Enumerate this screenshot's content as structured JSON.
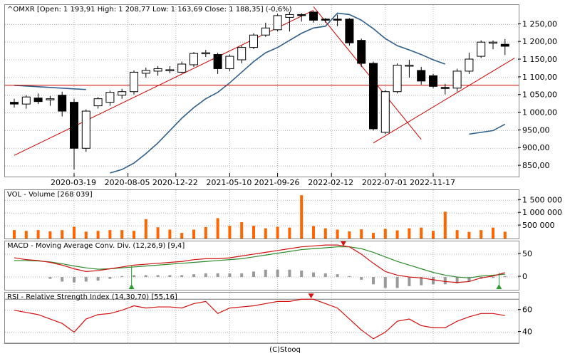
{
  "footer": "(C)Stooq",
  "panels": {
    "price": {
      "title": "^OMXR [Open: 1 193,91  High: 1 208,77  Low: 1 163,69  Close: 1 188,35] (-0,6%)"
    },
    "volume": {
      "title": "VOL - Volume [268 039]"
    },
    "macd": {
      "title": "MACD - Moving Average Conv. Div. (12,26,9) [9,4]"
    },
    "rsi": {
      "title": "RSI - Relative Strength Index (14,30,70) [55,16]"
    }
  },
  "colors": {
    "up": "#ffffff",
    "down": "#000000",
    "sma": "#2f5f8a",
    "trend": "#cc0000",
    "volume": "#ff6600",
    "macd": "#d11010",
    "signal": "#2e8b2e",
    "hist": "#9a9a9a",
    "rsi": "#d11010",
    "grid": "#b0b0b0",
    "buy": "#2e9c2e",
    "sell": "#dd1111"
  },
  "chart_data": [
    {
      "type": "candlestick",
      "ylim": [
        820,
        1305
      ],
      "yticks": [
        850,
        900,
        950,
        1000,
        1050,
        1100,
        1150,
        1200,
        1250
      ],
      "ytick_labels": [
        "850,00",
        "900,00",
        "950,00",
        "1 000,00",
        "1 050,00",
        "1 100,00",
        "1 150,00",
        "1 200,00",
        "1 250,00"
      ],
      "xtick_labels": [
        {
          "label": "2020-03-19",
          "index": 5
        },
        {
          "label": "2020-08-05",
          "index": 9.5
        },
        {
          "label": "2020-12-22",
          "index": 13.5
        },
        {
          "label": "2021-05-10",
          "index": 18
        },
        {
          "label": "2021-09-26",
          "index": 22
        },
        {
          "label": "2022-02-12",
          "index": 26.5
        },
        {
          "label": "2022-07-01",
          "index": 31
        },
        {
          "label": "2022-11-17",
          "index": 35
        }
      ],
      "candles": [
        {
          "o": 1030,
          "h": 1040,
          "l": 1015,
          "c": 1025
        },
        {
          "o": 1025,
          "h": 1050,
          "l": 1012,
          "c": 1045
        },
        {
          "o": 1042,
          "h": 1055,
          "l": 1025,
          "c": 1032
        },
        {
          "o": 1040,
          "h": 1048,
          "l": 1020,
          "c": 1040
        },
        {
          "o": 1050,
          "h": 1060,
          "l": 990,
          "c": 1005
        },
        {
          "o": 1030,
          "h": 1040,
          "l": 840,
          "c": 900
        },
        {
          "o": 900,
          "h": 1010,
          "l": 890,
          "c": 1005
        },
        {
          "o": 1020,
          "h": 1045,
          "l": 1012,
          "c": 1040
        },
        {
          "o": 1030,
          "h": 1063,
          "l": 1020,
          "c": 1058
        },
        {
          "o": 1050,
          "h": 1068,
          "l": 1040,
          "c": 1060
        },
        {
          "o": 1060,
          "h": 1120,
          "l": 1052,
          "c": 1115
        },
        {
          "o": 1112,
          "h": 1128,
          "l": 1100,
          "c": 1120
        },
        {
          "o": 1118,
          "h": 1132,
          "l": 1105,
          "c": 1125
        },
        {
          "o": 1122,
          "h": 1132,
          "l": 1112,
          "c": 1122
        },
        {
          "o": 1115,
          "h": 1145,
          "l": 1112,
          "c": 1138
        },
        {
          "o": 1136,
          "h": 1172,
          "l": 1130,
          "c": 1168
        },
        {
          "o": 1170,
          "h": 1178,
          "l": 1158,
          "c": 1170
        },
        {
          "o": 1165,
          "h": 1170,
          "l": 1110,
          "c": 1125
        },
        {
          "o": 1125,
          "h": 1165,
          "l": 1118,
          "c": 1160
        },
        {
          "o": 1150,
          "h": 1190,
          "l": 1140,
          "c": 1185
        },
        {
          "o": 1185,
          "h": 1225,
          "l": 1180,
          "c": 1220
        },
        {
          "o": 1220,
          "h": 1255,
          "l": 1215,
          "c": 1240
        },
        {
          "o": 1235,
          "h": 1280,
          "l": 1230,
          "c": 1275
        },
        {
          "o": 1270,
          "h": 1285,
          "l": 1230,
          "c": 1278
        },
        {
          "o": 1278,
          "h": 1282,
          "l": 1258,
          "c": 1275
        },
        {
          "o": 1285,
          "h": 1288,
          "l": 1255,
          "c": 1262
        },
        {
          "o": 1265,
          "h": 1268,
          "l": 1255,
          "c": 1262
        },
        {
          "o": 1265,
          "h": 1278,
          "l": 1245,
          "c": 1262
        },
        {
          "o": 1265,
          "h": 1268,
          "l": 1190,
          "c": 1198
        },
        {
          "o": 1205,
          "h": 1210,
          "l": 1130,
          "c": 1140
        },
        {
          "o": 1140,
          "h": 1145,
          "l": 950,
          "c": 955
        },
        {
          "o": 945,
          "h": 1065,
          "l": 940,
          "c": 1060
        },
        {
          "o": 1060,
          "h": 1140,
          "l": 1055,
          "c": 1135
        },
        {
          "o": 1133,
          "h": 1150,
          "l": 1100,
          "c": 1135
        },
        {
          "o": 1120,
          "h": 1130,
          "l": 1080,
          "c": 1090
        },
        {
          "o": 1105,
          "h": 1110,
          "l": 1070,
          "c": 1075
        },
        {
          "o": 1072,
          "h": 1082,
          "l": 1052,
          "c": 1070
        },
        {
          "o": 1070,
          "h": 1125,
          "l": 1060,
          "c": 1118
        },
        {
          "o": 1118,
          "h": 1170,
          "l": 1110,
          "c": 1152
        },
        {
          "o": 1160,
          "h": 1205,
          "l": 1155,
          "c": 1200
        },
        {
          "o": 1198,
          "h": 1205,
          "l": 1180,
          "c": 1200
        },
        {
          "o": 1193.91,
          "h": 1208.77,
          "l": 1163.69,
          "c": 1188.35
        }
      ],
      "sma_segments": [
        {
          "start": 0,
          "values": [
            1078,
            1076,
            1074,
            1072,
            1070,
            1068,
            1066
          ]
        },
        {
          "start": 8,
          "values": [
            830,
            840,
            858,
            885,
            915,
            950,
            985,
            1015,
            1040,
            1058,
            1085,
            1115,
            1145,
            1170,
            1185,
            1205,
            1225,
            1240,
            1245,
            1282,
            1278,
            1262,
            1238,
            1210,
            1190,
            1178,
            1165,
            1150,
            1138
          ]
        },
        {
          "start": 38,
          "values": [
            940,
            945,
            950,
            968
          ]
        }
      ],
      "horizontal_line": 1078,
      "trendlines": [
        {
          "from": [
            0,
            880
          ],
          "to": [
            25,
            1290
          ]
        },
        {
          "from": [
            25,
            1300
          ],
          "to": [
            34,
            925
          ]
        },
        {
          "from": [
            30,
            915
          ],
          "to": [
            41.8,
            1155
          ]
        }
      ]
    },
    {
      "type": "bar",
      "name": "Volume",
      "ylim": [
        0,
        1900000
      ],
      "yticks": [
        500000,
        1000000,
        1500000
      ],
      "ytick_labels": [
        "500 000",
        "1 000 000",
        "1 500 000"
      ],
      "values": [
        330000,
        300000,
        330000,
        280000,
        330000,
        460000,
        270000,
        300000,
        330000,
        330000,
        300000,
        760000,
        440000,
        350000,
        220000,
        350000,
        450000,
        800000,
        500000,
        640000,
        500000,
        400000,
        460000,
        430000,
        1700000,
        490000,
        400000,
        350000,
        280000,
        360000,
        220000,
        380000,
        320000,
        400000,
        430000,
        300000,
        1050000,
        330000,
        260000,
        330000,
        430000,
        268039
      ]
    },
    {
      "type": "line",
      "name": "MACD",
      "ylim": [
        -28,
        78
      ],
      "yticks": [
        0,
        50
      ],
      "ytick_labels": [
        "0",
        "50"
      ],
      "macd": [
        42,
        38,
        36,
        32,
        26,
        18,
        12,
        14,
        18,
        22,
        26,
        28,
        30,
        32,
        34,
        38,
        40,
        40,
        42,
        46,
        50,
        54,
        58,
        62,
        66,
        68,
        70,
        70,
        66,
        50,
        30,
        12,
        4,
        0,
        -2,
        -6,
        -10,
        -12,
        -10,
        -2,
        2,
        9.4
      ],
      "signal": [
        36,
        36,
        35,
        33,
        29,
        24,
        20,
        17,
        18,
        20,
        22,
        24,
        26,
        28,
        30,
        32,
        34,
        36,
        38,
        40,
        44,
        48,
        52,
        56,
        60,
        62,
        64,
        66,
        66,
        62,
        54,
        44,
        34,
        26,
        18,
        10,
        4,
        0,
        -2,
        2,
        4,
        6
      ],
      "hist": [
        null,
        null,
        null,
        -4,
        -10,
        -12,
        -10,
        -8,
        -4,
        2,
        4,
        4,
        4,
        4,
        4,
        6,
        8,
        8,
        8,
        8,
        12,
        16,
        16,
        16,
        14,
        10,
        8,
        6,
        2,
        -6,
        -16,
        -24,
        -24,
        -20,
        -18,
        -16,
        -16,
        -14,
        -10,
        -4,
        -2,
        2
      ],
      "buy_markers": [
        9.8,
        40.5
      ],
      "sell_markers": [
        27.5
      ]
    },
    {
      "type": "line",
      "name": "RSI",
      "ylim": [
        30,
        76
      ],
      "yticks": [
        40,
        60
      ],
      "ytick_labels": [
        "40",
        "60"
      ],
      "levels": [
        30,
        70
      ],
      "values": [
        60,
        58,
        56,
        52,
        48,
        40,
        52,
        56,
        57,
        60,
        64,
        62,
        63,
        63,
        62,
        66,
        68,
        57,
        62,
        63,
        64,
        66,
        68,
        68,
        70,
        70,
        66,
        62,
        52,
        42,
        34,
        40,
        50,
        52,
        46,
        44,
        44,
        50,
        54,
        57,
        57,
        55.16
      ],
      "sell_markers": [
        24.8
      ]
    }
  ]
}
